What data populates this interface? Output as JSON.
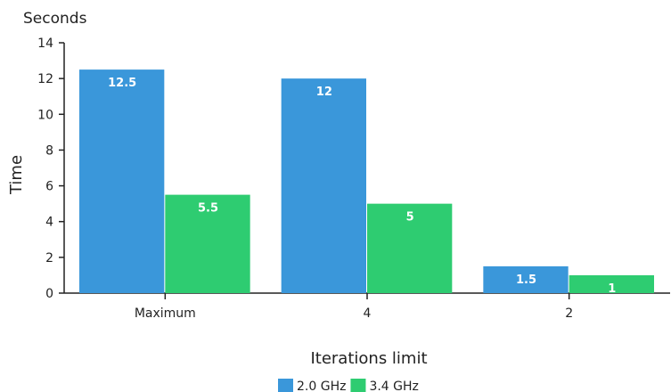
{
  "chart_data": {
    "type": "bar",
    "title": "",
    "unit_label": "Seconds",
    "xlabel": "Iterations limit",
    "ylabel": "Time",
    "ylim": [
      0,
      14
    ],
    "yticks": [
      0,
      2,
      4,
      6,
      8,
      10,
      12,
      14
    ],
    "categories": [
      "Maximum",
      "4",
      "2"
    ],
    "series": [
      {
        "name": "2.0 GHz",
        "color": "#3a97da",
        "values": [
          12.5,
          12,
          1.5
        ]
      },
      {
        "name": "3.4 GHz",
        "color": "#2ecc71",
        "values": [
          5.5,
          5,
          1
        ]
      }
    ],
    "grid": false,
    "legend_position": "bottom-center"
  }
}
